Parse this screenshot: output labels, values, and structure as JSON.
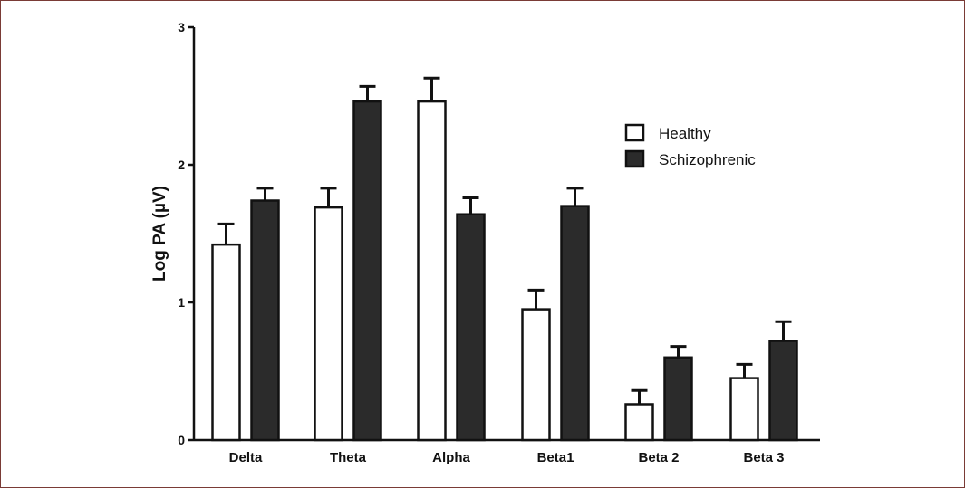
{
  "chart_data": {
    "type": "bar",
    "title": "",
    "xlabel": "",
    "ylabel": "Log PA (µV)",
    "ylim": [
      0,
      3
    ],
    "yticks": [
      "0",
      "1",
      "2",
      "3"
    ],
    "categories": [
      "Delta",
      "Theta",
      "Alpha",
      "Beta1",
      "Beta 2",
      "Beta 3"
    ],
    "series": [
      {
        "name": "Healthy",
        "values": [
          1.42,
          1.69,
          2.46,
          0.95,
          0.26,
          0.45
        ],
        "errors": [
          0.15,
          0.14,
          0.17,
          0.14,
          0.1,
          0.1
        ],
        "color": "#ffffff"
      },
      {
        "name": "Schizophrenic",
        "values": [
          1.74,
          2.46,
          1.64,
          1.7,
          0.6,
          0.72
        ],
        "errors": [
          0.09,
          0.11,
          0.12,
          0.13,
          0.08,
          0.14
        ],
        "color": "#2b2b2b"
      }
    ],
    "legend_position": "top-right",
    "grid": false
  }
}
